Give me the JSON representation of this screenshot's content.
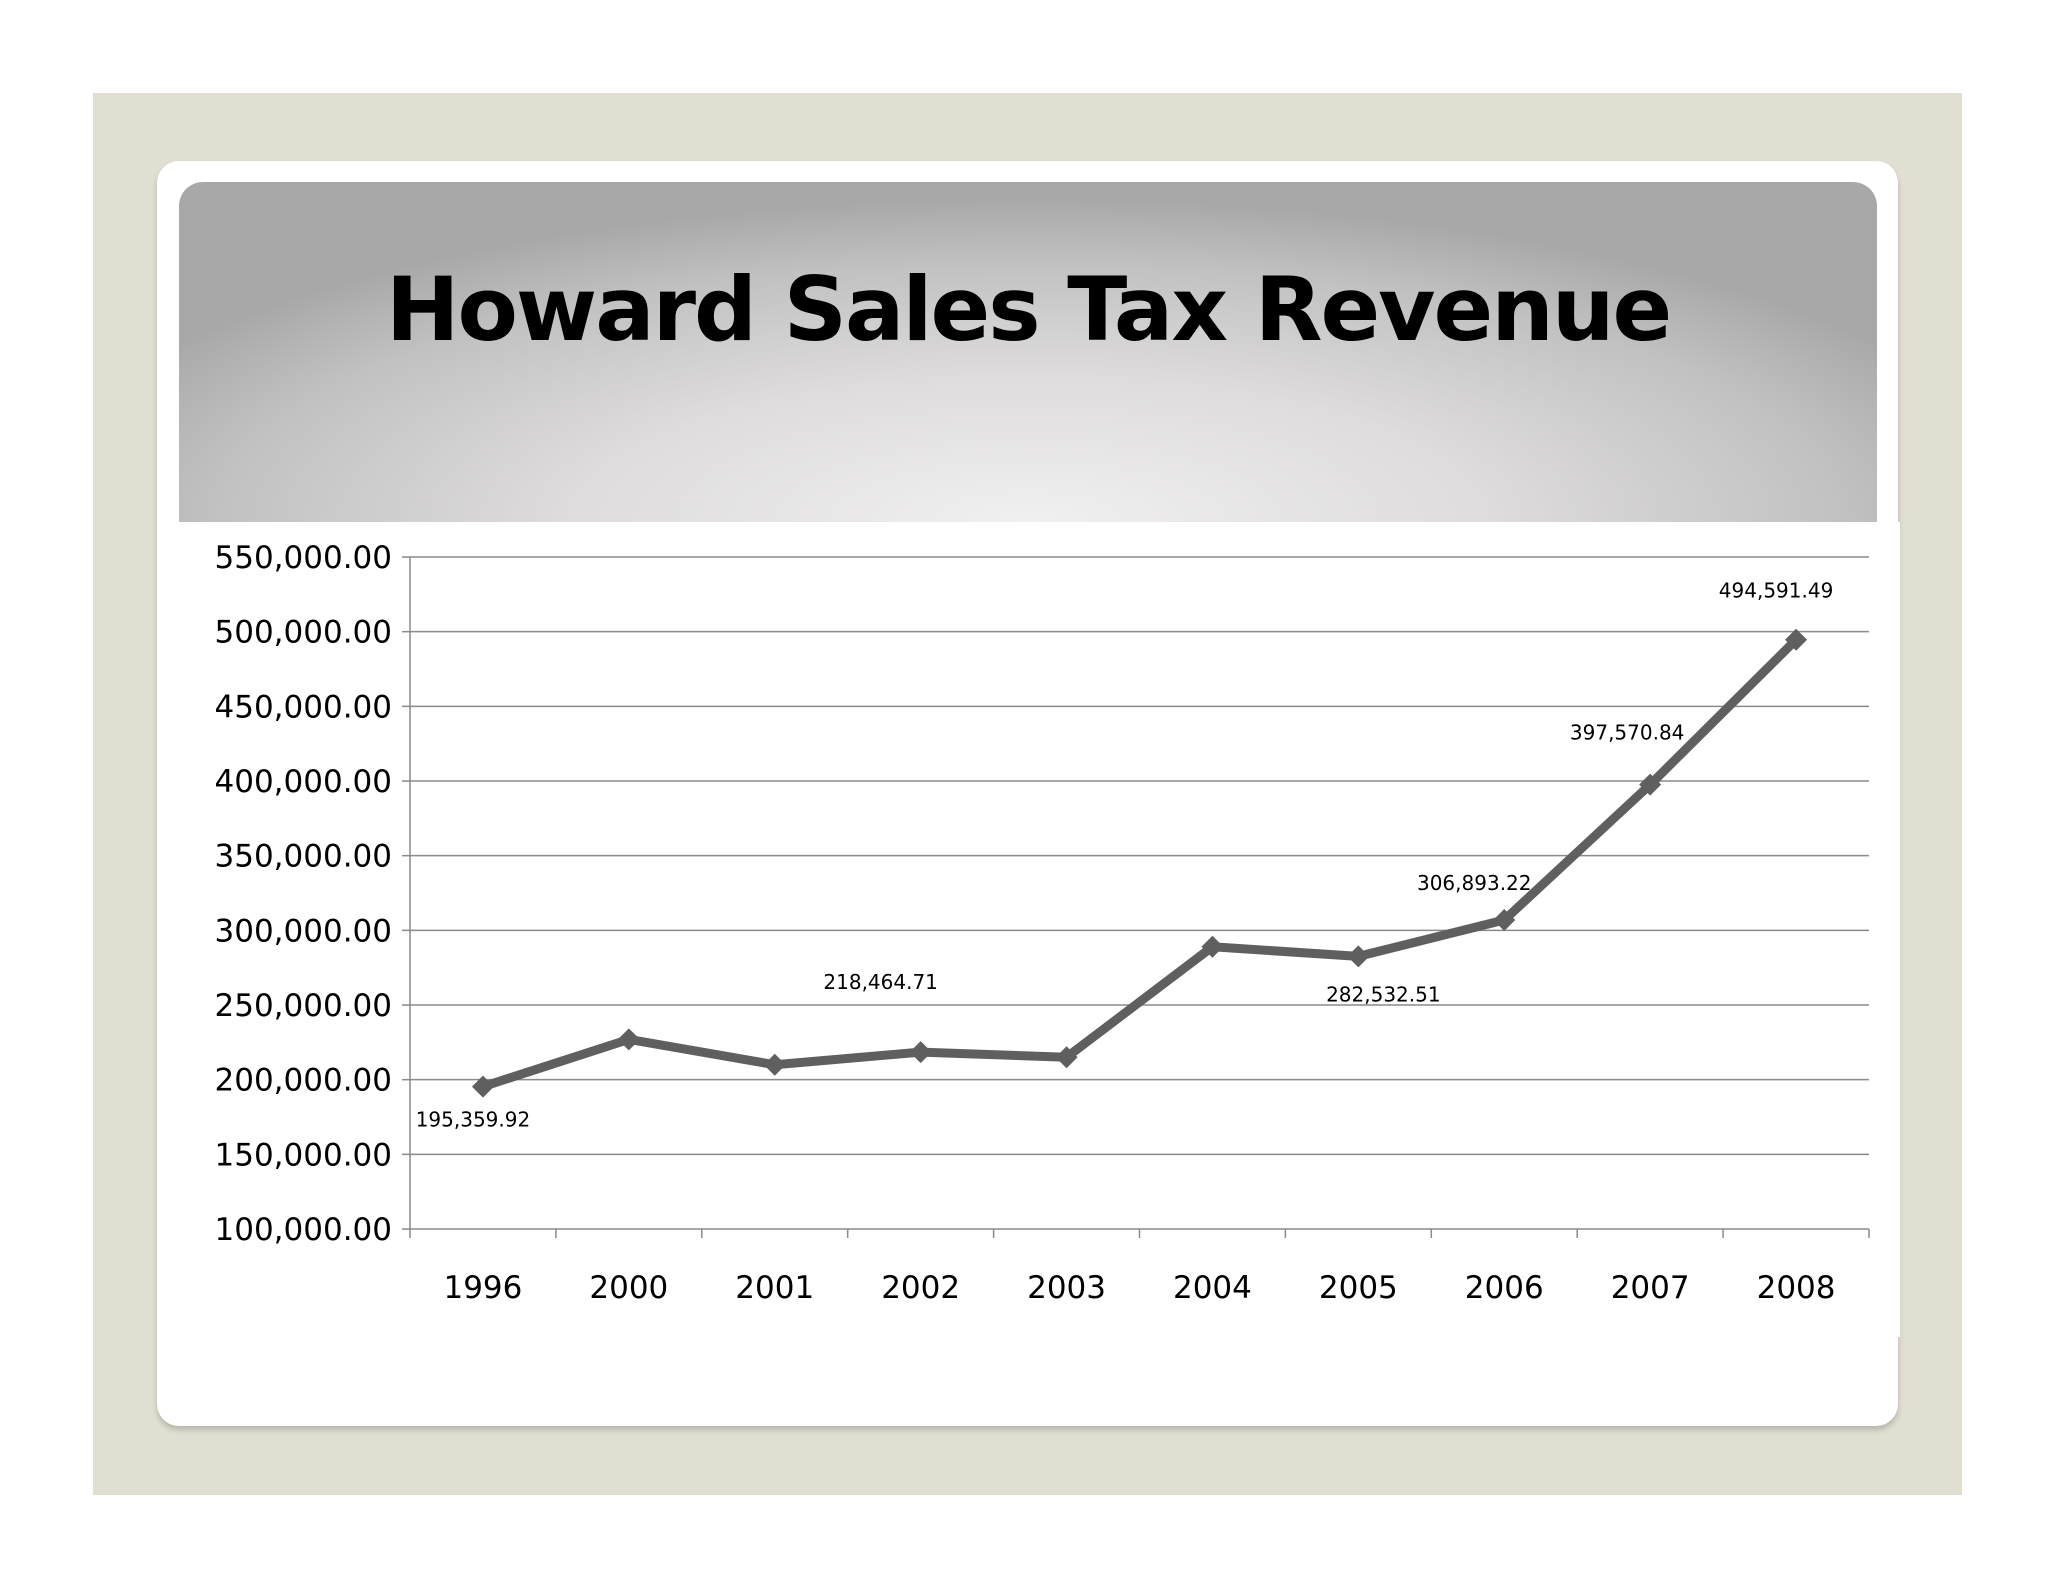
{
  "chart_data": {
    "type": "line",
    "title": "Howard Sales Tax Revenue",
    "xlabel": "",
    "ylabel": "",
    "categories": [
      "1996",
      "2000",
      "2001",
      "2002",
      "2003",
      "2004",
      "2005",
      "2006",
      "2007",
      "2008"
    ],
    "series": [
      {
        "values": [
          195359.92,
          227000,
          210000,
          218464.71,
          215000,
          289000,
          282532.51,
          306893.22,
          397570.84,
          494591.49
        ],
        "color": "#5f5f5f"
      }
    ],
    "data_labels": [
      {
        "index": 0,
        "text": "195,359.92"
      },
      {
        "index": 3,
        "text": "218,464.71"
      },
      {
        "index": 6,
        "text": "282,532.51"
      },
      {
        "index": 7,
        "text": "306,893.22"
      },
      {
        "index": 8,
        "text": "397,570.84"
      },
      {
        "index": 9,
        "text": "494,591.49"
      }
    ],
    "ylim": [
      100000,
      550000
    ],
    "yticks": [
      {
        "value": 100000,
        "label": "100,000.00"
      },
      {
        "value": 150000,
        "label": "150,000.00"
      },
      {
        "value": 200000,
        "label": "200,000.00"
      },
      {
        "value": 250000,
        "label": "250,000.00"
      },
      {
        "value": 300000,
        "label": "300,000.00"
      },
      {
        "value": 350000,
        "label": "350,000.00"
      },
      {
        "value": 400000,
        "label": "400,000.00"
      },
      {
        "value": 450000,
        "label": "450,000.00"
      },
      {
        "value": 500000,
        "label": "500,000.00"
      },
      {
        "value": 550000,
        "label": "550,000.00"
      }
    ],
    "grid": true,
    "legend": "none",
    "marker": "diamond"
  }
}
